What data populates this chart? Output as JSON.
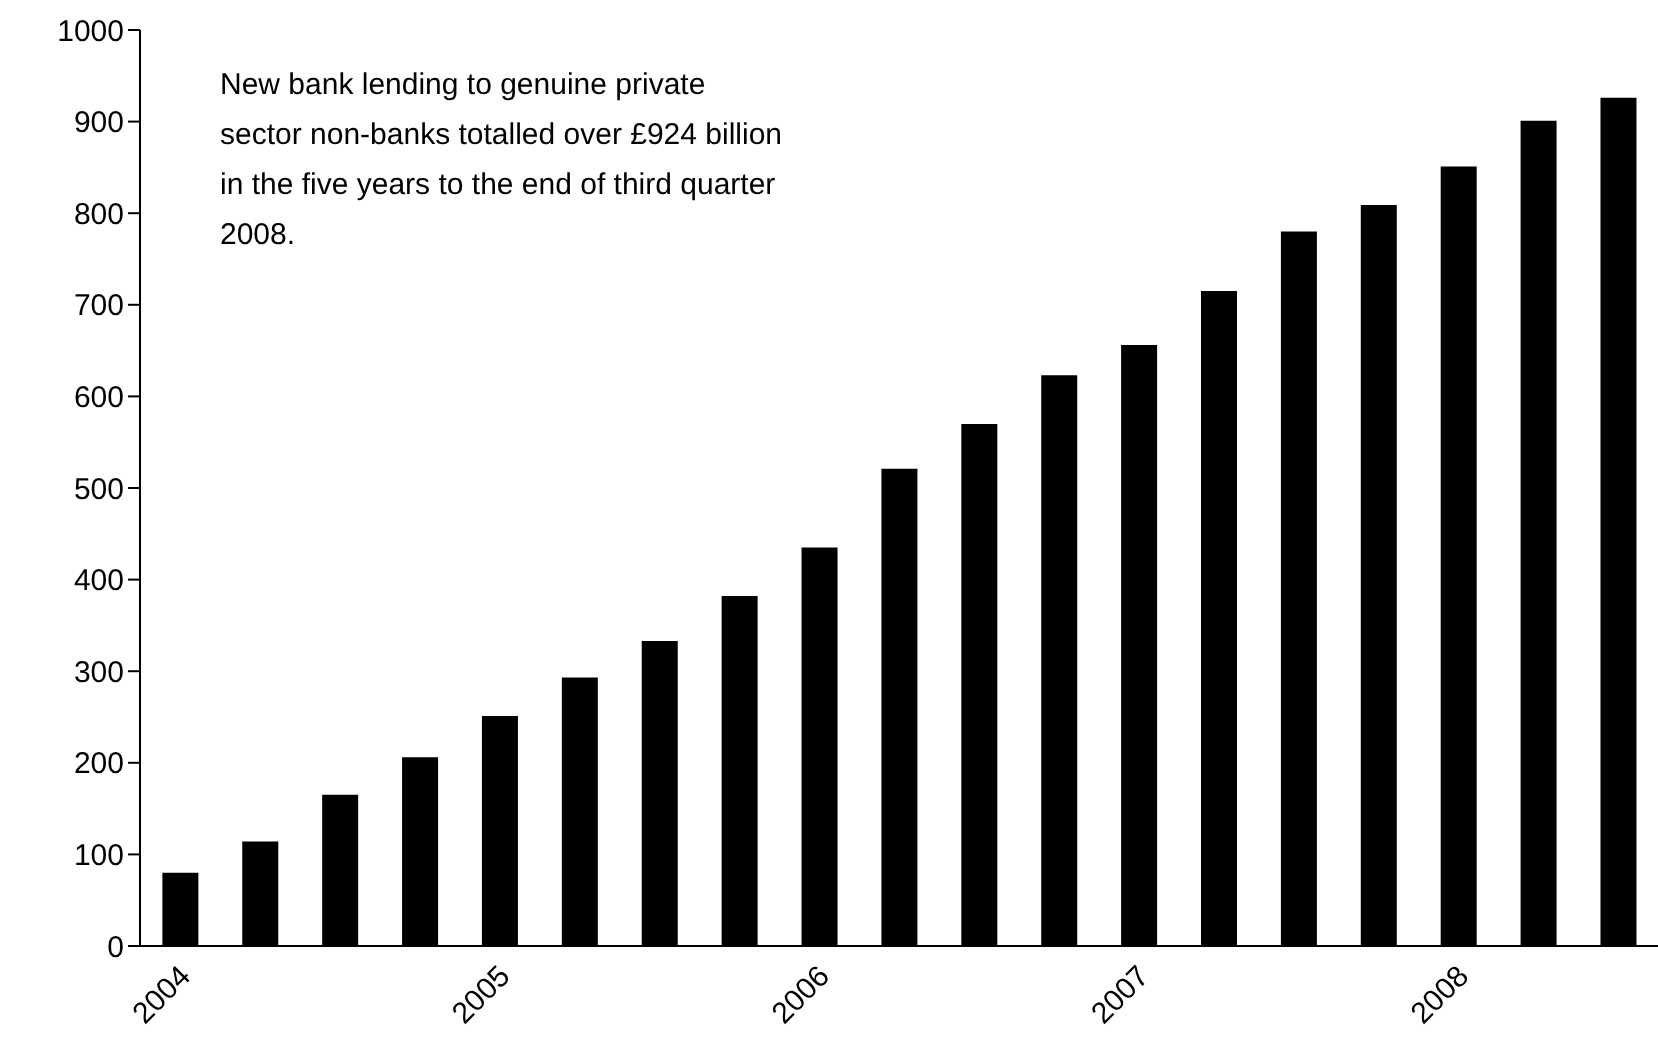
{
  "chart_data": {
    "type": "bar",
    "categories": [
      "2004",
      null,
      null,
      null,
      "2005",
      null,
      null,
      null,
      "2006",
      null,
      null,
      null,
      "2007",
      null,
      null,
      null,
      "2008",
      null,
      null
    ],
    "values": [
      80,
      114,
      165,
      206,
      251,
      293,
      333,
      382,
      435,
      521,
      570,
      623,
      656,
      715,
      780,
      809,
      851,
      901,
      926
    ],
    "color": "#000000",
    "ylim": [
      0,
      1000
    ],
    "yticks": [
      0,
      100,
      200,
      300,
      400,
      500,
      600,
      700,
      800,
      900,
      1000
    ],
    "grid": false,
    "annotations": [
      "New bank lending to genuine private sector non-banks totalled over £924 billion in the five years to the end of third quarter 2008."
    ]
  }
}
